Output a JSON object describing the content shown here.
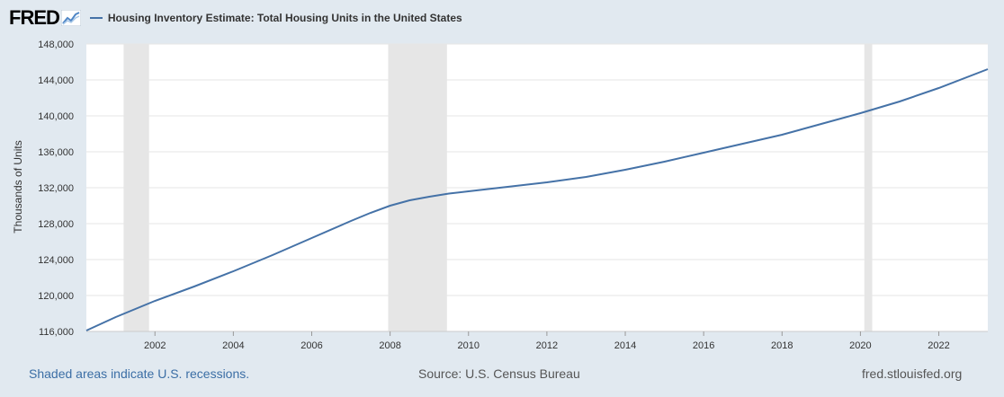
{
  "header": {
    "logo_text": "FRED",
    "logo_icon": "chart-line-icon",
    "series_title": "Housing Inventory Estimate: Total Housing Units in the United States"
  },
  "footer": {
    "recession_note": "Shaded areas indicate U.S. recessions.",
    "source": "Source: U.S. Census Bureau",
    "url": "fred.stlouisfed.org"
  },
  "colors": {
    "line": "#4572a7",
    "recession": "#e6e6e6",
    "background": "#e1e9f0",
    "plot": "#ffffff",
    "note": "#3b6ea5"
  },
  "chart_data": {
    "type": "line",
    "title": "Housing Inventory Estimate: Total Housing Units in the United States",
    "ylabel": "Thousands of Units",
    "xlim": [
      2000.25,
      2023.25
    ],
    "ylim": [
      116000,
      148000
    ],
    "y_ticks": [
      116000,
      120000,
      124000,
      128000,
      132000,
      136000,
      140000,
      144000,
      148000
    ],
    "y_tick_labels": [
      "116,000",
      "120,000",
      "124,000",
      "128,000",
      "132,000",
      "136,000",
      "140,000",
      "144,000",
      "148,000"
    ],
    "x_ticks": [
      2002,
      2004,
      2006,
      2008,
      2010,
      2012,
      2014,
      2016,
      2018,
      2020,
      2022
    ],
    "recessions": [
      [
        2001.2,
        2001.85
      ],
      [
        2007.95,
        2009.45
      ],
      [
        2020.1,
        2020.3
      ]
    ],
    "grid": true,
    "series": [
      {
        "name": "Housing Inventory Estimate: Total Housing Units in the United States",
        "x": [
          2000.25,
          2001,
          2002,
          2003,
          2004,
          2005,
          2006,
          2007,
          2007.5,
          2008,
          2008.5,
          2009,
          2009.5,
          2010,
          2011,
          2012,
          2013,
          2014,
          2015,
          2016,
          2017,
          2018,
          2019,
          2020,
          2021,
          2022,
          2023.25
        ],
        "y": [
          116100,
          117600,
          119400,
          121000,
          122700,
          124500,
          126400,
          128300,
          129200,
          130000,
          130600,
          131000,
          131350,
          131600,
          132100,
          132600,
          133200,
          134000,
          134900,
          135900,
          136900,
          137900,
          139100,
          140300,
          141600,
          143100,
          145200
        ]
      }
    ]
  }
}
